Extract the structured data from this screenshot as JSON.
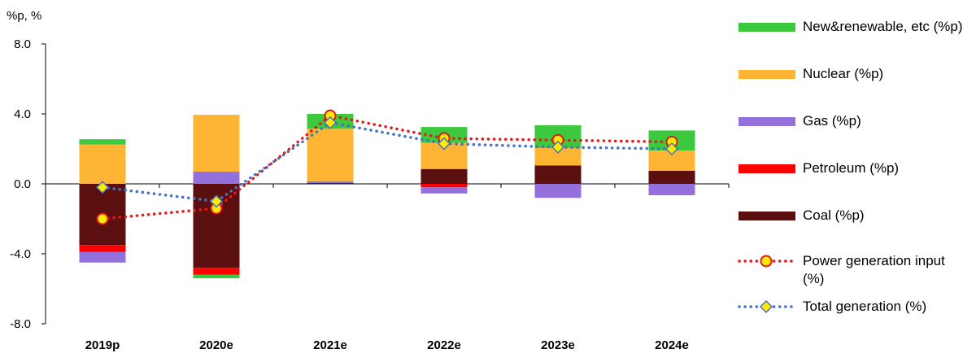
{
  "chart_data": {
    "type": "bar",
    "subtype": "stacked bar with line overlays",
    "y_unit_label": "%p, %",
    "categories": [
      "2019p",
      "2020e",
      "2021e",
      "2022e",
      "2023e",
      "2024e"
    ],
    "ylim": [
      -8.0,
      8.0
    ],
    "yticks": [
      8.0,
      4.0,
      0.0,
      -4.0,
      -8.0
    ],
    "ytick_labels": [
      "8.0",
      "4.0",
      "0.0",
      "-4.0",
      "-8.0"
    ],
    "grid": false,
    "legend_position": "right",
    "bar_series": [
      {
        "key": "coal",
        "name": "Coal (%p)",
        "color": "#5C0F0F",
        "values": [
          -3.5,
          -4.8,
          0.05,
          0.85,
          1.05,
          0.75
        ]
      },
      {
        "key": "petroleum",
        "name": "Petroleum (%p)",
        "color": "#FF0000",
        "values": [
          -0.4,
          -0.4,
          0.0,
          -0.2,
          0.0,
          0.0
        ]
      },
      {
        "key": "gas",
        "name": "Gas (%p)",
        "color": "#9370DB",
        "values": [
          -0.6,
          0.7,
          0.1,
          -0.35,
          -0.8,
          -0.65
        ]
      },
      {
        "key": "nuclear",
        "name": "Nuclear (%p)",
        "color": "#FFB534",
        "values": [
          2.25,
          3.25,
          3.0,
          1.5,
          1.0,
          1.15
        ]
      },
      {
        "key": "renewable",
        "name": "New&renewable, etc (%p)",
        "color": "#3DC93D",
        "values": [
          0.3,
          -0.2,
          0.85,
          0.9,
          1.3,
          1.15
        ]
      }
    ],
    "line_series": [
      {
        "key": "power_input",
        "name": "Power generation input (%)",
        "line_color": "#E31A1C",
        "marker": "circle",
        "marker_fill": "#FFEB00",
        "marker_stroke": "#E31A1C",
        "values": [
          -2.0,
          -1.4,
          3.9,
          2.6,
          2.5,
          2.4
        ]
      },
      {
        "key": "total_gen",
        "name": "Total generation (%)",
        "line_color": "#4472C4",
        "marker": "diamond",
        "marker_fill": "#FFEB00",
        "marker_stroke": "#4472C4",
        "values": [
          -0.2,
          -1.0,
          3.5,
          2.3,
          2.1,
          2.0
        ]
      }
    ]
  },
  "legend": [
    {
      "key": "renewable",
      "label": "New&renewable, etc (%p)",
      "kind": "bar",
      "color": "#3DC93D"
    },
    {
      "key": "nuclear",
      "label": "Nuclear (%p)",
      "kind": "bar",
      "color": "#FFB534"
    },
    {
      "key": "gas",
      "label": "Gas (%p)",
      "kind": "bar",
      "color": "#9370DB"
    },
    {
      "key": "petroleum",
      "label": "Petroleum (%p)",
      "kind": "bar",
      "color": "#FF0000"
    },
    {
      "key": "coal",
      "label": "Coal (%p)",
      "kind": "bar",
      "color": "#5C0F0F"
    },
    {
      "key": "power_input",
      "label": "Power generation input (%)",
      "kind": "line-circle",
      "color": "#E31A1C",
      "marker_fill": "#FFEB00"
    },
    {
      "key": "total_gen",
      "label": "Total generation (%)",
      "kind": "line-diamond",
      "color": "#4472C4",
      "marker_fill": "#FFEB00"
    }
  ]
}
